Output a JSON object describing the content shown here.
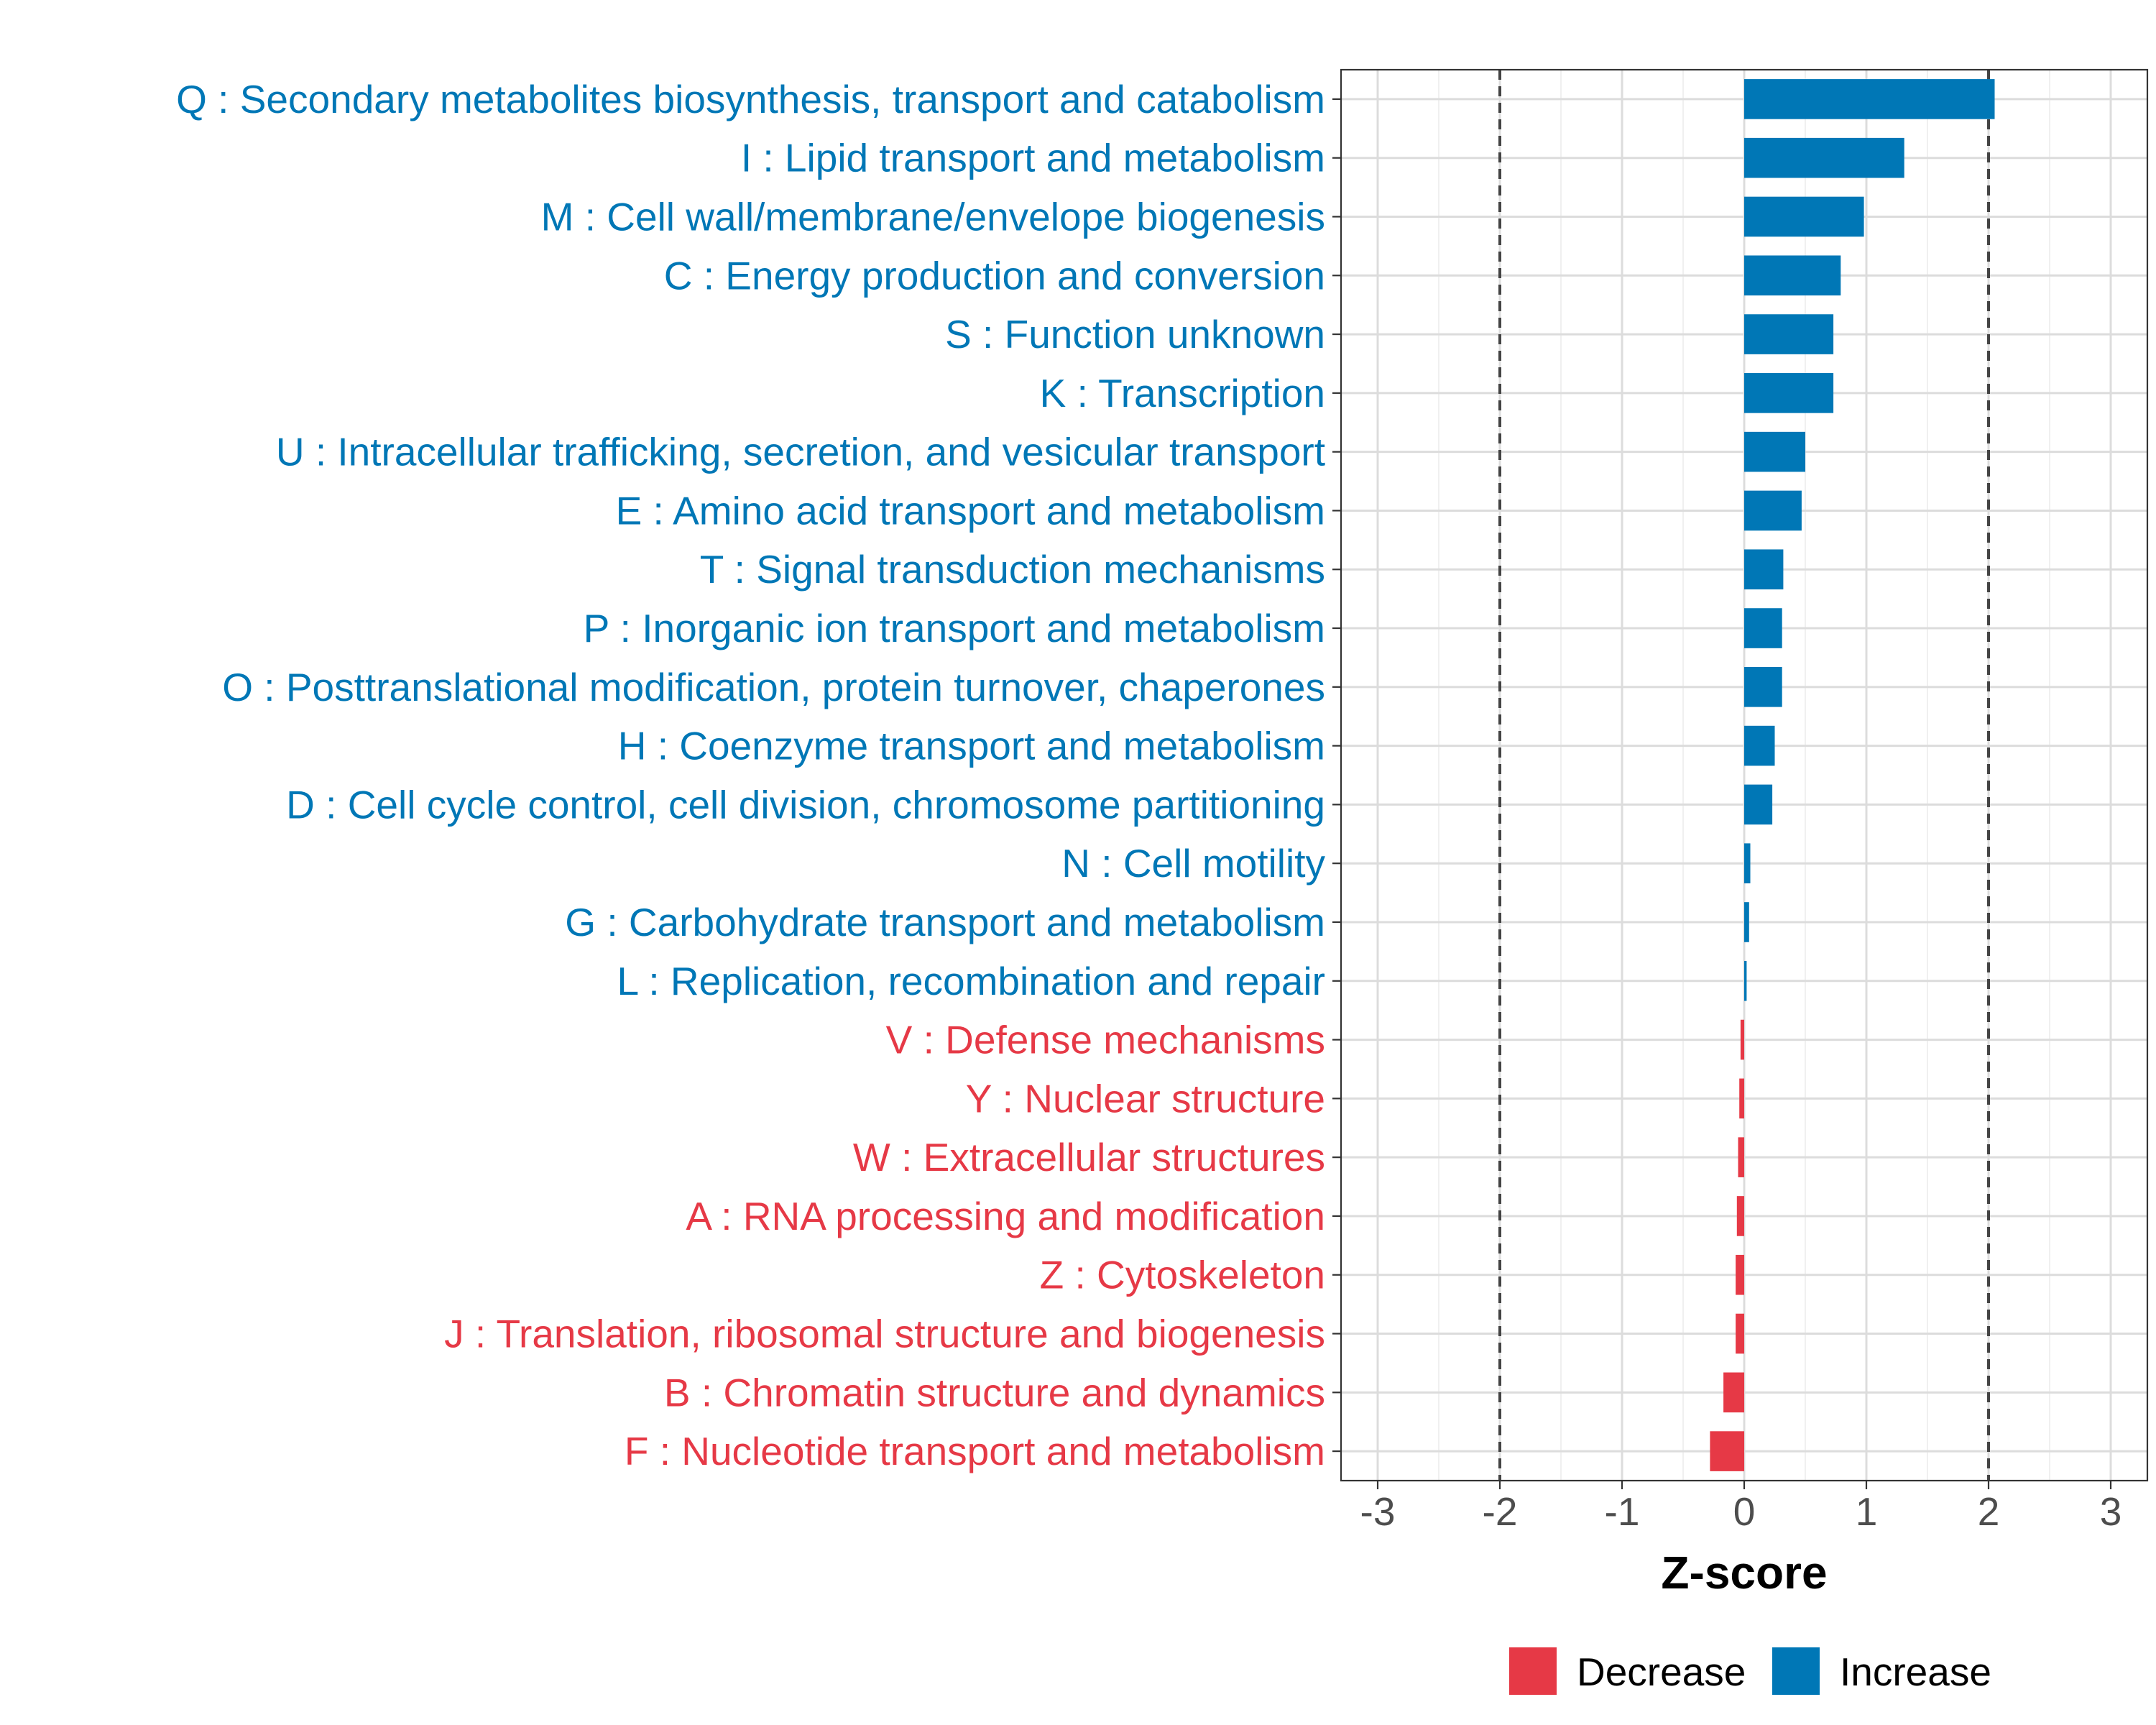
{
  "chart_data": {
    "type": "bar",
    "orientation": "horizontal",
    "xlabel": "Z-score",
    "xlim": [
      -3.3,
      3.3
    ],
    "xticks": [
      -3,
      -2,
      -1,
      0,
      1,
      2,
      3
    ],
    "xtick_labels": [
      "-3",
      "-2",
      "-1",
      "0",
      "1",
      "2",
      "3"
    ],
    "threshold_lines": [
      -2,
      2
    ],
    "grid": true,
    "legend_position": "bottom",
    "colors": {
      "Decrease": "#e63946",
      "Increase": "#0077b6"
    },
    "legend": [
      {
        "label": "Decrease",
        "color": "#e63946"
      },
      {
        "label": "Increase",
        "color": "#0077b6"
      }
    ],
    "categories": [
      {
        "label": "Q : Secondary metabolites biosynthesis, transport and catabolism",
        "value": 2.05,
        "group": "Increase"
      },
      {
        "label": "I : Lipid transport and metabolism",
        "value": 1.31,
        "group": "Increase"
      },
      {
        "label": "M : Cell wall/membrane/envelope biogenesis",
        "value": 0.98,
        "group": "Increase"
      },
      {
        "label": "C : Energy production and conversion",
        "value": 0.79,
        "group": "Increase"
      },
      {
        "label": "S : Function unknown",
        "value": 0.73,
        "group": "Increase"
      },
      {
        "label": "K : Transcription",
        "value": 0.73,
        "group": "Increase"
      },
      {
        "label": "U : Intracellular trafficking, secretion, and vesicular transport",
        "value": 0.5,
        "group": "Increase"
      },
      {
        "label": "E : Amino acid transport and metabolism",
        "value": 0.47,
        "group": "Increase"
      },
      {
        "label": "T : Signal transduction mechanisms",
        "value": 0.32,
        "group": "Increase"
      },
      {
        "label": "P : Inorganic ion transport and metabolism",
        "value": 0.31,
        "group": "Increase"
      },
      {
        "label": "O : Posttranslational modification, protein turnover, chaperones",
        "value": 0.31,
        "group": "Increase"
      },
      {
        "label": "H : Coenzyme transport and metabolism",
        "value": 0.25,
        "group": "Increase"
      },
      {
        "label": "D : Cell cycle control, cell division, chromosome partitioning",
        "value": 0.23,
        "group": "Increase"
      },
      {
        "label": "N : Cell motility",
        "value": 0.05,
        "group": "Increase"
      },
      {
        "label": "G : Carbohydrate transport and metabolism",
        "value": 0.04,
        "group": "Increase"
      },
      {
        "label": "L : Replication, recombination and repair",
        "value": 0.02,
        "group": "Increase"
      },
      {
        "label": "V : Defense mechanisms",
        "value": -0.03,
        "group": "Decrease"
      },
      {
        "label": "Y : Nuclear structure",
        "value": -0.04,
        "group": "Decrease"
      },
      {
        "label": "W : Extracellular structures",
        "value": -0.05,
        "group": "Decrease"
      },
      {
        "label": "A : RNA processing and modification",
        "value": -0.06,
        "group": "Decrease"
      },
      {
        "label": "Z : Cytoskeleton",
        "value": -0.07,
        "group": "Decrease"
      },
      {
        "label": "J : Translation, ribosomal structure and biogenesis",
        "value": -0.07,
        "group": "Decrease"
      },
      {
        "label": "B : Chromatin structure and dynamics",
        "value": -0.17,
        "group": "Decrease"
      },
      {
        "label": "F : Nucleotide transport and metabolism",
        "value": -0.28,
        "group": "Decrease"
      }
    ]
  }
}
